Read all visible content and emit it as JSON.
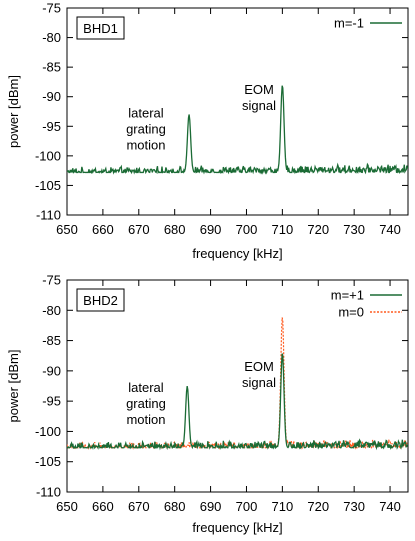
{
  "chart_data": [
    {
      "type": "line",
      "label": "BHD1",
      "xlabel": "frequency [kHz]",
      "ylabel": "power [dBm]",
      "xlim": [
        650,
        745
      ],
      "ylim": [
        -110,
        -75
      ],
      "xticks": [
        650,
        660,
        670,
        680,
        690,
        700,
        710,
        720,
        730,
        740
      ],
      "yticks": [
        -75,
        -80,
        -85,
        -90,
        -95,
        -100,
        -105,
        -110
      ],
      "legend_position": "top-right",
      "grid": false,
      "baseline_dbm": -102.8,
      "series": [
        {
          "name": "m=-1",
          "color": "#1b6b35",
          "dashed": false,
          "peaks": [
            {
              "x": 684,
              "y": -93.0
            },
            {
              "x": 710,
              "y": -88.0
            }
          ]
        }
      ],
      "annotations": [
        {
          "lines": [
            "lateral",
            "grating",
            "motion"
          ],
          "x": 672,
          "y": -93.5
        },
        {
          "lines": [
            "EOM",
            "signal"
          ],
          "x": 703.5,
          "y": -89.5
        }
      ]
    },
    {
      "type": "line",
      "label": "BHD2",
      "xlabel": "frequency [kHz]",
      "ylabel": "power [dBm]",
      "xlim": [
        650,
        745
      ],
      "ylim": [
        -110,
        -75
      ],
      "xticks": [
        650,
        660,
        670,
        680,
        690,
        700,
        710,
        720,
        730,
        740
      ],
      "yticks": [
        -75,
        -80,
        -85,
        -90,
        -95,
        -100,
        -105,
        -110
      ],
      "legend_position": "top-right",
      "grid": false,
      "baseline_dbm": -102.7,
      "series": [
        {
          "name": "m=+1",
          "color": "#1b6b35",
          "dashed": false,
          "peaks": [
            {
              "x": 683.5,
              "y": -92.5
            },
            {
              "x": 710,
              "y": -87.0
            }
          ]
        },
        {
          "name": "m=0",
          "color": "#ff5a1f",
          "dashed": true,
          "peaks": [
            {
              "x": 710,
              "y": -81.0
            }
          ]
        }
      ],
      "annotations": [
        {
          "lines": [
            "lateral",
            "grating",
            "motion"
          ],
          "x": 672,
          "y": -93.5
        },
        {
          "lines": [
            "EOM",
            "signal"
          ],
          "x": 703.5,
          "y": -90.0
        }
      ]
    }
  ]
}
